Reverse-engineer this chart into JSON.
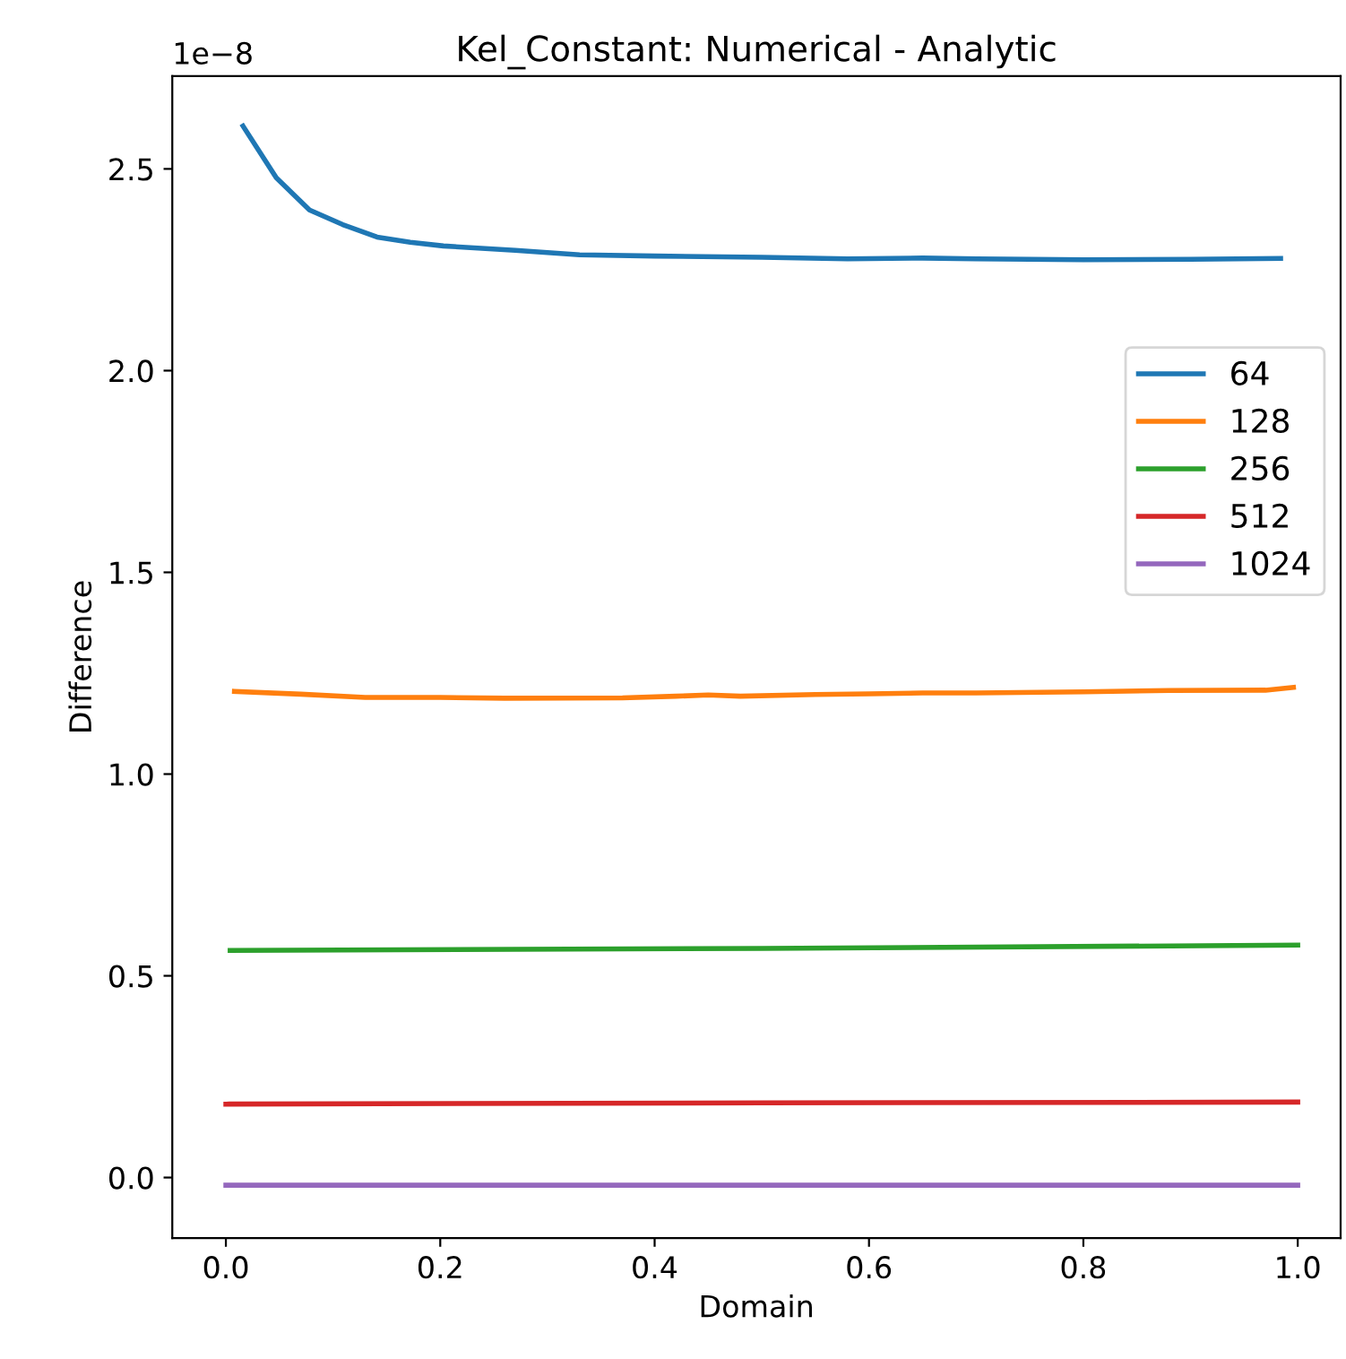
{
  "chart_data": {
    "type": "line",
    "title": "Kel_Constant: Numerical - Analytic",
    "xlabel": "Domain",
    "ylabel": "Difference",
    "annotations": [
      "1e−8"
    ],
    "series": [
      {
        "name": "64",
        "color": "#1f77b4",
        "x": [
          0.016,
          0.047,
          0.078,
          0.109,
          0.141,
          0.172,
          0.203,
          0.27,
          0.33,
          0.4,
          0.5,
          0.58,
          0.65,
          0.7,
          0.8,
          0.9,
          0.984
        ],
        "values": [
          2.606,
          2.478,
          2.398,
          2.362,
          2.331,
          2.318,
          2.309,
          2.298,
          2.287,
          2.284,
          2.281,
          2.277,
          2.279,
          2.277,
          2.275,
          2.276,
          2.278
        ]
      },
      {
        "name": "128",
        "color": "#ff7f0e",
        "x": [
          0.008,
          0.07,
          0.13,
          0.2,
          0.26,
          0.37,
          0.42,
          0.45,
          0.48,
          0.55,
          0.6,
          0.65,
          0.7,
          0.8,
          0.88,
          0.97,
          0.996
        ],
        "values": [
          1.205,
          1.198,
          1.19,
          1.19,
          1.188,
          1.189,
          1.193,
          1.196,
          1.193,
          1.197,
          1.199,
          1.201,
          1.201,
          1.204,
          1.207,
          1.208,
          1.215
        ]
      },
      {
        "name": "256",
        "color": "#2ca02c",
        "x": [
          0.004,
          0.5,
          1.0
        ],
        "values": [
          0.563,
          0.568,
          0.576
        ]
      },
      {
        "name": "512",
        "color": "#d62728",
        "x": [
          0.0,
          0.5,
          1.0
        ],
        "values": [
          0.182,
          0.185,
          0.187
        ]
      },
      {
        "name": "1024",
        "color": "#9467bd",
        "x": [
          0.0,
          0.5,
          1.0
        ],
        "values": [
          -0.019,
          -0.019,
          -0.019
        ]
      }
    ],
    "xlim": [
      -0.05,
      1.04
    ],
    "ylim": [
      -0.15,
      2.73
    ],
    "xticks": [
      {
        "value": 0.0,
        "label": "0.0"
      },
      0.2,
      0.4,
      0.6,
      0.8,
      {
        "value": 1.0,
        "label": "1.0"
      }
    ],
    "yticks": [
      {
        "value": 0.0,
        "label": "0.0"
      },
      0.5,
      {
        "value": 1.0,
        "label": "1.0"
      },
      1.5,
      {
        "value": 2.0,
        "label": "2.0"
      },
      2.5
    ],
    "legend": "right",
    "grid": false
  }
}
